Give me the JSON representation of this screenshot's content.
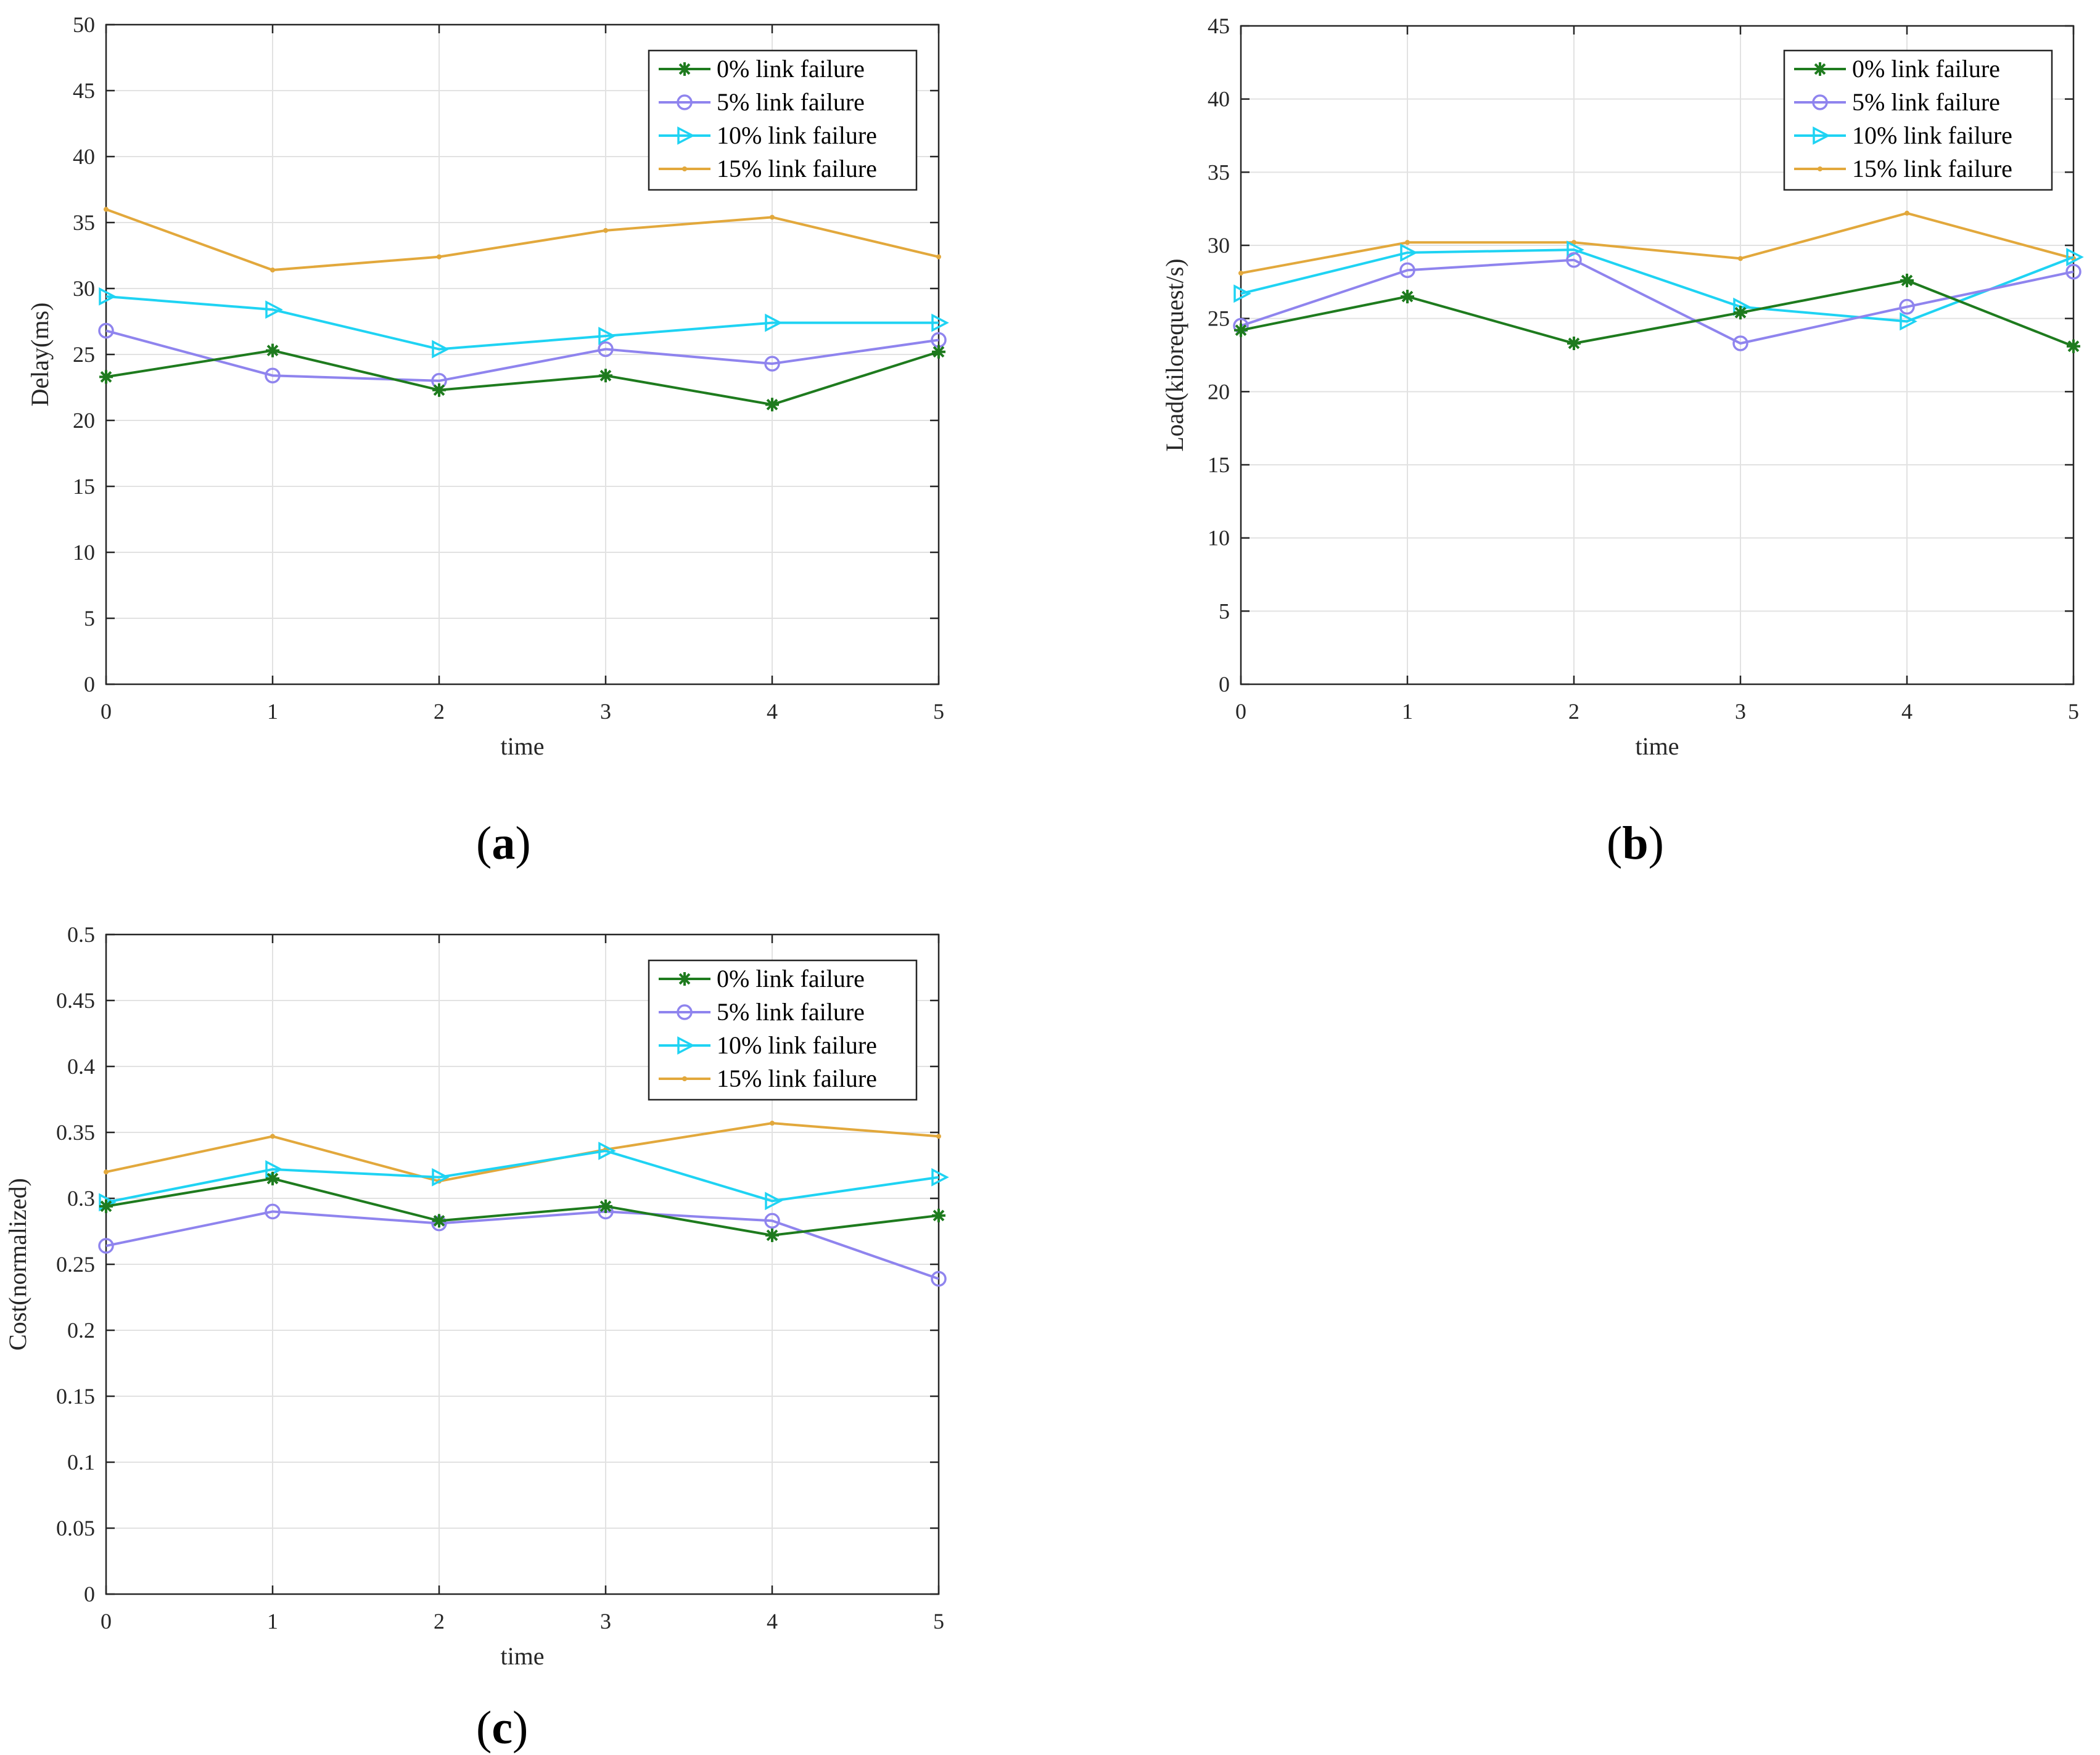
{
  "chart_data": [
    {
      "type": "line",
      "panel": "(a)",
      "panel_letter": "a",
      "xlabel": "time",
      "ylabel": "Delay(ms)",
      "x": [
        0,
        1,
        2,
        3,
        4,
        5
      ],
      "xticks": [
        "0",
        "1",
        "2",
        "3",
        "4",
        "5"
      ],
      "ylim": [
        0,
        50
      ],
      "yticks": [
        "0",
        "5",
        "10",
        "15",
        "20",
        "25",
        "30",
        "35",
        "40",
        "45",
        "50"
      ],
      "grid": true,
      "legend_position": "top-right",
      "series": [
        {
          "name": "0% link failure",
          "values": [
            23.3,
            25.3,
            22.3,
            23.4,
            21.2,
            25.2
          ]
        },
        {
          "name": "5% link failure",
          "values": [
            26.8,
            23.4,
            23.0,
            25.4,
            24.3,
            26.1
          ]
        },
        {
          "name": "10% link failure",
          "values": [
            29.4,
            28.4,
            25.4,
            26.4,
            27.4,
            27.4
          ]
        },
        {
          "name": "15% link failure",
          "values": [
            36.0,
            31.4,
            32.4,
            34.4,
            35.4,
            32.4
          ]
        }
      ]
    },
    {
      "type": "line",
      "panel": "(b)",
      "panel_letter": "b",
      "xlabel": "time",
      "ylabel": "Load(kilorequest/s)",
      "x": [
        0,
        1,
        2,
        3,
        4,
        5
      ],
      "xticks": [
        "0",
        "1",
        "2",
        "3",
        "4",
        "5"
      ],
      "ylim": [
        0,
        45
      ],
      "yticks": [
        "0",
        "5",
        "10",
        "15",
        "20",
        "25",
        "30",
        "35",
        "40",
        "45"
      ],
      "grid": true,
      "legend_position": "top-right",
      "series": [
        {
          "name": "0% link failure",
          "values": [
            24.2,
            26.5,
            23.3,
            25.4,
            27.6,
            23.1
          ]
        },
        {
          "name": "5% link failure",
          "values": [
            24.5,
            28.3,
            29.0,
            23.3,
            25.8,
            28.2
          ]
        },
        {
          "name": "10% link failure",
          "values": [
            26.7,
            29.5,
            29.7,
            25.8,
            24.8,
            29.2
          ]
        },
        {
          "name": "15% link failure",
          "values": [
            28.1,
            30.2,
            30.2,
            29.1,
            32.2,
            29.1
          ]
        }
      ]
    },
    {
      "type": "line",
      "panel": "(c)",
      "panel_letter": "c",
      "xlabel": "time",
      "ylabel": "Cost(normalized)",
      "x": [
        0,
        1,
        2,
        3,
        4,
        5
      ],
      "xticks": [
        "0",
        "1",
        "2",
        "3",
        "4",
        "5"
      ],
      "ylim": [
        0,
        0.5
      ],
      "yticks": [
        "0",
        "0.05",
        "0.1",
        "0.15",
        "0.2",
        "0.25",
        "0.3",
        "0.35",
        "0.4",
        "0.45",
        "0.5"
      ],
      "grid": true,
      "legend_position": "top-right",
      "series": [
        {
          "name": "0% link failure",
          "values": [
            0.294,
            0.315,
            0.283,
            0.294,
            0.272,
            0.287
          ]
        },
        {
          "name": "5% link failure",
          "values": [
            0.264,
            0.29,
            0.281,
            0.29,
            0.283,
            0.239
          ]
        },
        {
          "name": "10% link failure",
          "values": [
            0.297,
            0.322,
            0.316,
            0.336,
            0.298,
            0.316
          ]
        },
        {
          "name": "15% link failure",
          "values": [
            0.32,
            0.347,
            0.313,
            0.337,
            0.357,
            0.347
          ]
        }
      ]
    }
  ],
  "colors": {
    "0% link failure": "#1e7b1e",
    "5% link failure": "#8f84ee",
    "10% link failure": "#1fd3f3",
    "15% link failure": "#e2a83c",
    "grid": "#e2e2e2",
    "axis": "#262626"
  },
  "markers": {
    "0% link failure": "asterisk",
    "5% link failure": "circle",
    "10% link failure": "triangle-right",
    "15% link failure": "dot"
  }
}
